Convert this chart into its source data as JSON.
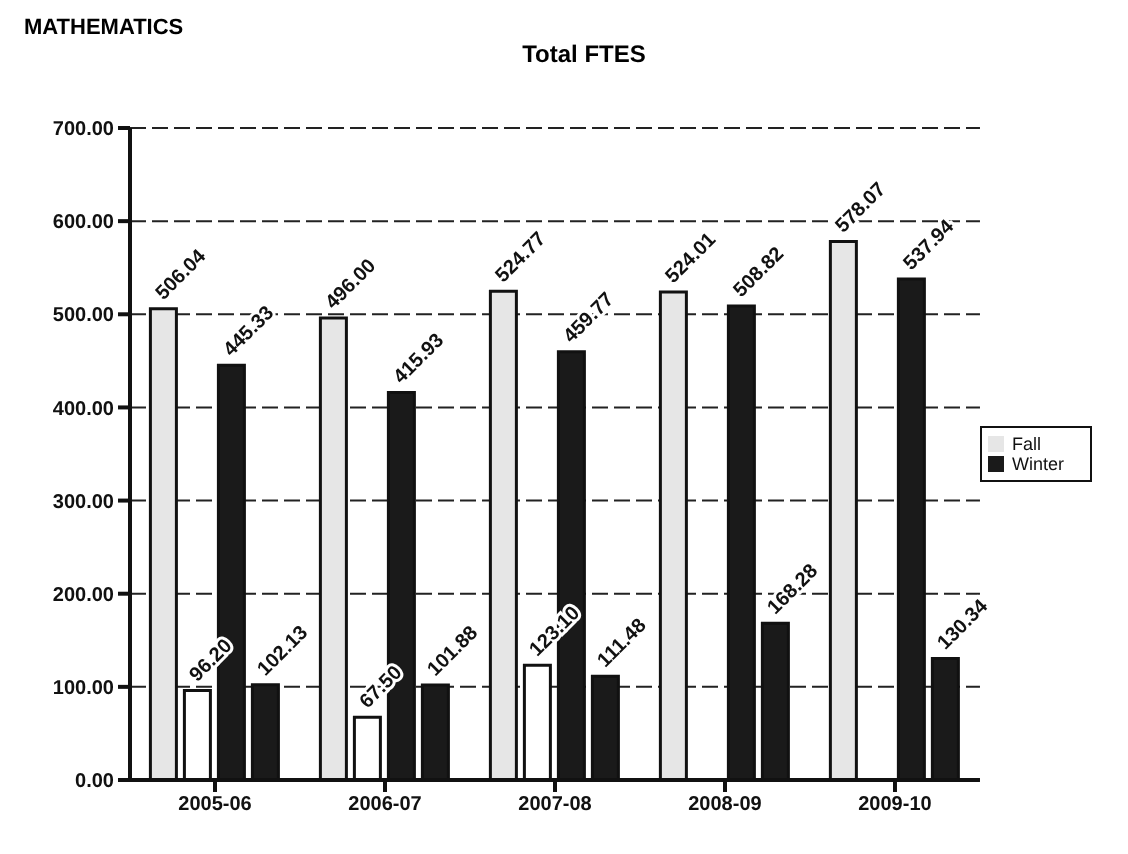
{
  "chart_data": {
    "type": "bar",
    "subtitle": "MATHEMATICS",
    "title": "Total FTES",
    "categories": [
      "2005-06",
      "2006-07",
      "2007-08",
      "2008-09",
      "2009-10"
    ],
    "series": [
      {
        "name": "Fall",
        "color": "#e6e6e6",
        "values": [
          506.04,
          496.0,
          524.77,
          524.01,
          578.07
        ],
        "value_labels": [
          "506.04",
          "496.00",
          "524.77",
          "524.01",
          "578.07"
        ]
      },
      {
        "color": "#ffffff",
        "values": [
          96.2,
          67.5,
          123.1,
          null,
          null
        ],
        "value_labels": [
          "96.20",
          "67.50",
          "123.10",
          null,
          null
        ]
      },
      {
        "name": "Winter",
        "color": "#1a1a1a",
        "values": [
          445.33,
          415.93,
          459.77,
          508.82,
          537.94
        ],
        "value_labels": [
          "445.33",
          "415.93",
          "459.77",
          "508.82",
          "537.94"
        ]
      },
      {
        "color": "#1a1a1a",
        "values": [
          102.13,
          101.88,
          111.48,
          168.28,
          130.34
        ],
        "value_labels": [
          "102.13",
          "101.88",
          "111.48",
          "168.28",
          "130.34"
        ]
      }
    ],
    "ylim": [
      0,
      700
    ],
    "yticks": [
      {
        "value": 0,
        "label": "0.00"
      },
      {
        "value": 100,
        "label": "100.00"
      },
      {
        "value": 200,
        "label": "200.00"
      },
      {
        "value": 300,
        "label": "300.00"
      },
      {
        "value": 400,
        "label": "400.00"
      },
      {
        "value": 500,
        "label": "500.00"
      },
      {
        "value": 600,
        "label": "600.00"
      },
      {
        "value": 700,
        "label": "700.00"
      }
    ],
    "grid": "y",
    "legend": "right"
  }
}
